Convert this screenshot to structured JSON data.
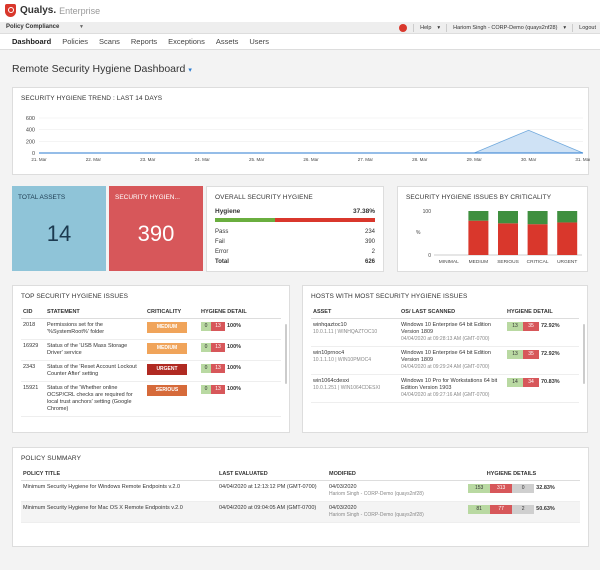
{
  "app": {
    "name": "Qualys.",
    "edition": "Enterprise"
  },
  "module": "Policy Compliance",
  "top_right": {
    "help": "Help",
    "user": "Hariom Singh - CORP-Demo (quays2nf28)",
    "logout": "Logout"
  },
  "nav": [
    "Dashboard",
    "Policies",
    "Scans",
    "Reports",
    "Exceptions",
    "Assets",
    "Users"
  ],
  "dashboard_title": "Remote Security Hygiene Dashboard",
  "trend": {
    "title": "SECURITY HYGIENE TREND : LAST 14 DAYS",
    "y_ticks": [
      "600",
      "400",
      "200",
      "0"
    ],
    "x_ticks": [
      "21. Mar",
      "22. Mar",
      "23. Mar",
      "24. Mar",
      "25. Mar",
      "26. Mar",
      "27. Mar",
      "28. Mar",
      "29. Mar",
      "30. Mar",
      "31. Mar"
    ]
  },
  "chart_data": [
    {
      "type": "area",
      "title": "SECURITY HYGIENE TREND : LAST 14 DAYS",
      "x": [
        "21. Mar",
        "22. Mar",
        "23. Mar",
        "24. Mar",
        "25. Mar",
        "26. Mar",
        "27. Mar",
        "28. Mar",
        "29. Mar",
        "30. Mar",
        "31. Mar"
      ],
      "values": [
        0,
        0,
        0,
        0,
        0,
        0,
        0,
        0,
        0,
        390,
        0
      ],
      "ylim": [
        0,
        600
      ],
      "y_ticks": [
        0,
        200,
        400,
        600
      ],
      "color": "#6fa8dc"
    },
    {
      "type": "bar",
      "title": "SECURITY HYGIENE ISSUES BY CRITICALITY",
      "categories": [
        "MINIMAL",
        "MEDIUM",
        "SERIOUS",
        "CRITICAL",
        "URGENT"
      ],
      "series": [
        {
          "values": [
            0,
            78,
            72,
            70,
            74
          ],
          "color": "#d9372c"
        },
        {
          "values": [
            0,
            22,
            28,
            30,
            26
          ],
          "color": "#3f8f3f"
        }
      ],
      "ylim": [
        0,
        100
      ],
      "y_ticks": [
        0,
        100
      ],
      "ylabel": "%"
    }
  ],
  "kpi": {
    "assets": {
      "label": "TOTAL ASSETS",
      "value": "14"
    },
    "issues": {
      "label": "SECURITY HYGIEN...",
      "value": "390"
    }
  },
  "overall": {
    "title": "OVERALL SECURITY HYGIENE",
    "hygiene_label": "Hygiene",
    "hygiene_pct": "37.38%",
    "hygiene_fraction": 0.3738,
    "rows": [
      {
        "label": "Pass",
        "value": "234"
      },
      {
        "label": "Fail",
        "value": "390"
      },
      {
        "label": "Error",
        "value": "2"
      },
      {
        "label": "Total",
        "value": "626"
      }
    ]
  },
  "crit_title": "SECURITY HYGIENE ISSUES BY CRITICALITY",
  "top_issues": {
    "title": "TOP SECURITY HYGIENE ISSUES",
    "headers": [
      "CID",
      "STATEMENT",
      "CRITICALITY",
      "HYGIENE DETAIL"
    ],
    "rows": [
      {
        "cid": "2018",
        "statement": "Permissions set for the '%SystemRoot%' folder",
        "criticality": "MEDIUM",
        "color": "#f0a45a",
        "pass": "0",
        "fail": "13",
        "pct": "100%"
      },
      {
        "cid": "16929",
        "statement": "Status of the 'USB Mass Storage Driver' service",
        "criticality": "MEDIUM",
        "color": "#f0a45a",
        "pass": "0",
        "fail": "13",
        "pct": "100%"
      },
      {
        "cid": "2343",
        "statement": "Status of the 'Reset Account Lockout Counter After' setting",
        "criticality": "URGENT",
        "color": "#b02a22",
        "pass": "0",
        "fail": "13",
        "pct": "100%"
      },
      {
        "cid": "15921",
        "statement": "Status of the 'Whether online OCSP/CRL checks are required for local trust anchors' setting (Google Chrome)",
        "criticality": "SERIOUS",
        "color": "#d66a3a",
        "pass": "0",
        "fail": "13",
        "pct": "100%"
      }
    ]
  },
  "hosts": {
    "title": "HOSTS WITH MOST SECURITY HYGIENE ISSUES",
    "headers": [
      "ASSET",
      "OS/ LAST SCANNED",
      "HYGIENE DETAIL"
    ],
    "rows": [
      {
        "name": "winhqaztoc10",
        "ip": "10.0.1.11 | WINHQAZTOC10",
        "os": "Windows 10 Enterprise 64 bit Edition Version 1809",
        "scanned": "04/04/2020 at 09:28:13 AM (GMT-0700)",
        "pass": "13",
        "fail": "35",
        "pct": "72.92%"
      },
      {
        "name": "win10prnoc4",
        "ip": "10.1.1.10 | WIN10PMOC4",
        "os": "Windows 10 Enterprise 64 bit Edition Version 1809",
        "scanned": "04/04/2020 at 09:29:24 AM (GMT-0700)",
        "pass": "13",
        "fail": "35",
        "pct": "72.92%"
      },
      {
        "name": "win1064cdesxi",
        "ip": "10.0.1.251 | WIN1064CDESXI",
        "os": "Windows 10 Pro for Workstations 64 bit Edition Version 1903",
        "scanned": "04/04/2020 at 09:27:16 AM (GMT-0700)",
        "pass": "14",
        "fail": "34",
        "pct": "70.83%"
      }
    ]
  },
  "policy": {
    "title": "POLICY SUMMARY",
    "headers": [
      "POLICY TITLE",
      "LAST EVALUATED",
      "MODIFIED",
      "HYGIENE DETAILS"
    ],
    "rows": [
      {
        "title": "Minimum Security Hygiene for Windows Remote Endpoints v.2.0",
        "evaluated": "04/04/2020 at 12:13:12 PM (GMT-0700)",
        "modified": "04/03/2020",
        "by": "Hariom Singh - CORP-Demo (quays2nf28)",
        "pass": "153",
        "fail": "313",
        "error": "0",
        "pct": "32.83%"
      },
      {
        "title": "Minimum Security Hygiene for Mac OS X Remote Endpoints v.2.0",
        "evaluated": "04/04/2020 at 09:04:05 AM (GMT-0700)",
        "modified": "04/03/2020",
        "by": "Hariom Singh - CORP-Demo (quays2nf28)",
        "pass": "81",
        "fail": "77",
        "error": "2",
        "pct": "50.63%"
      }
    ]
  }
}
